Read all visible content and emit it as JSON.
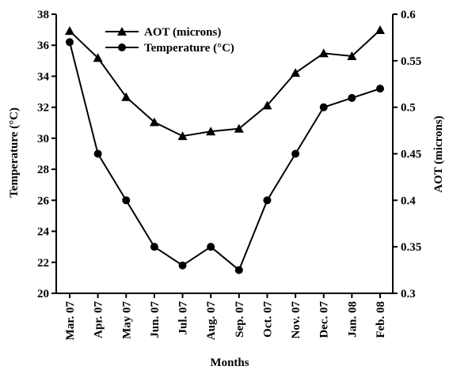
{
  "chart_data": {
    "type": "line",
    "categories": [
      "Mar. 07",
      "Apr. 07",
      "May 07",
      "Jun. 07",
      "Jul. 07",
      "Aug. 07",
      "Sep. 07",
      "Oct. 07",
      "Nov. 07",
      "Dec. 07",
      "Jan. 08",
      "Feb. 08"
    ],
    "series": [
      {
        "name": "AOT (microns)",
        "axis": "right",
        "marker": "triangle",
        "values": [
          0.582,
          0.553,
          0.511,
          0.484,
          0.469,
          0.474,
          0.477,
          0.502,
          0.537,
          0.558,
          0.555,
          0.583
        ]
      },
      {
        "name": "Temperature (°C)",
        "axis": "left",
        "marker": "circle",
        "values": [
          36.2,
          29.0,
          26.0,
          23.0,
          21.8,
          23.0,
          21.5,
          26.0,
          29.0,
          32.0,
          32.6,
          33.2
        ]
      }
    ],
    "xlabel": "Months",
    "ylabel": "Temperature (°C)",
    "y2label": "AOT (microns)",
    "ylim": [
      20,
      38
    ],
    "y2lim": [
      0.3,
      0.6
    ],
    "yticks": [
      "20",
      "22",
      "24",
      "26",
      "28",
      "30",
      "32",
      "34",
      "36",
      "38"
    ],
    "y2ticks": [
      "0.3",
      "0.35",
      "0.4",
      "0.45",
      "0.5",
      "0.55",
      "0.6"
    ],
    "grid": false,
    "legend_position": "top-left",
    "color": "#000000"
  }
}
